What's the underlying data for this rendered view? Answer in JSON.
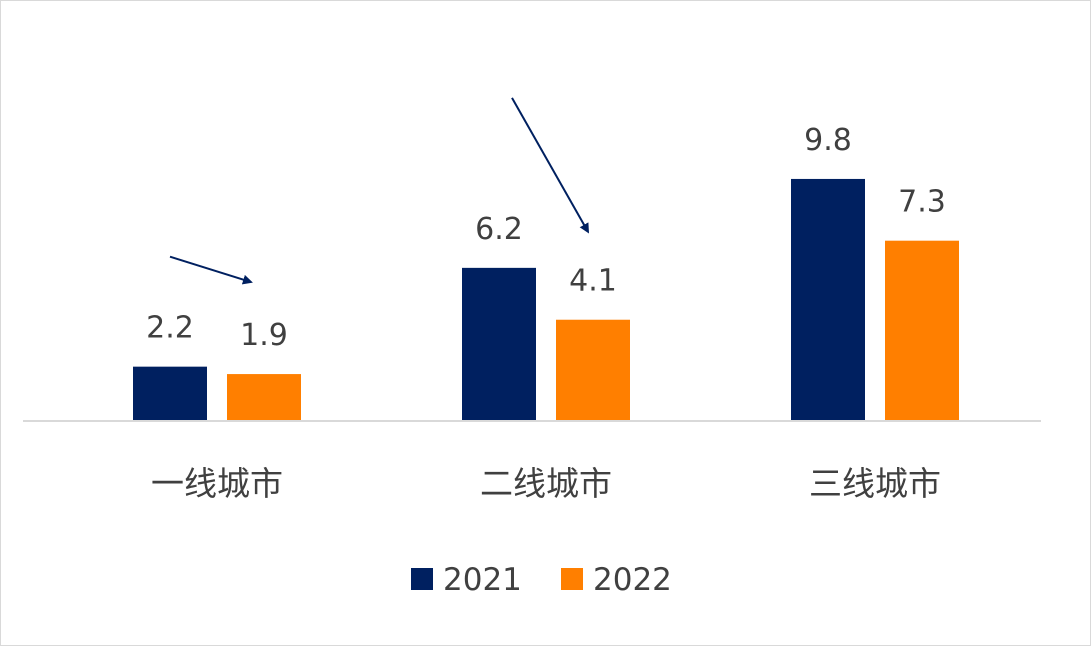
{
  "chart_data": {
    "type": "bar",
    "categories": [
      "一线城市",
      "二线城市",
      "三线城市"
    ],
    "series": [
      {
        "name": "2021",
        "color": "#002060",
        "values": [
          2.2,
          6.2,
          9.8
        ]
      },
      {
        "name": "2022",
        "color": "#FF7F00",
        "values": [
          1.9,
          4.1,
          7.3
        ]
      }
    ],
    "ylim": [
      0,
      10.5
    ],
    "grid": false,
    "legend": "bottom",
    "annotations": [
      {
        "type": "arrow",
        "icon": "down-right-arrow",
        "category": "一线城市",
        "color": "#002060"
      },
      {
        "type": "arrow",
        "icon": "down-right-arrow",
        "category": "二线城市",
        "color": "#002060"
      }
    ]
  }
}
